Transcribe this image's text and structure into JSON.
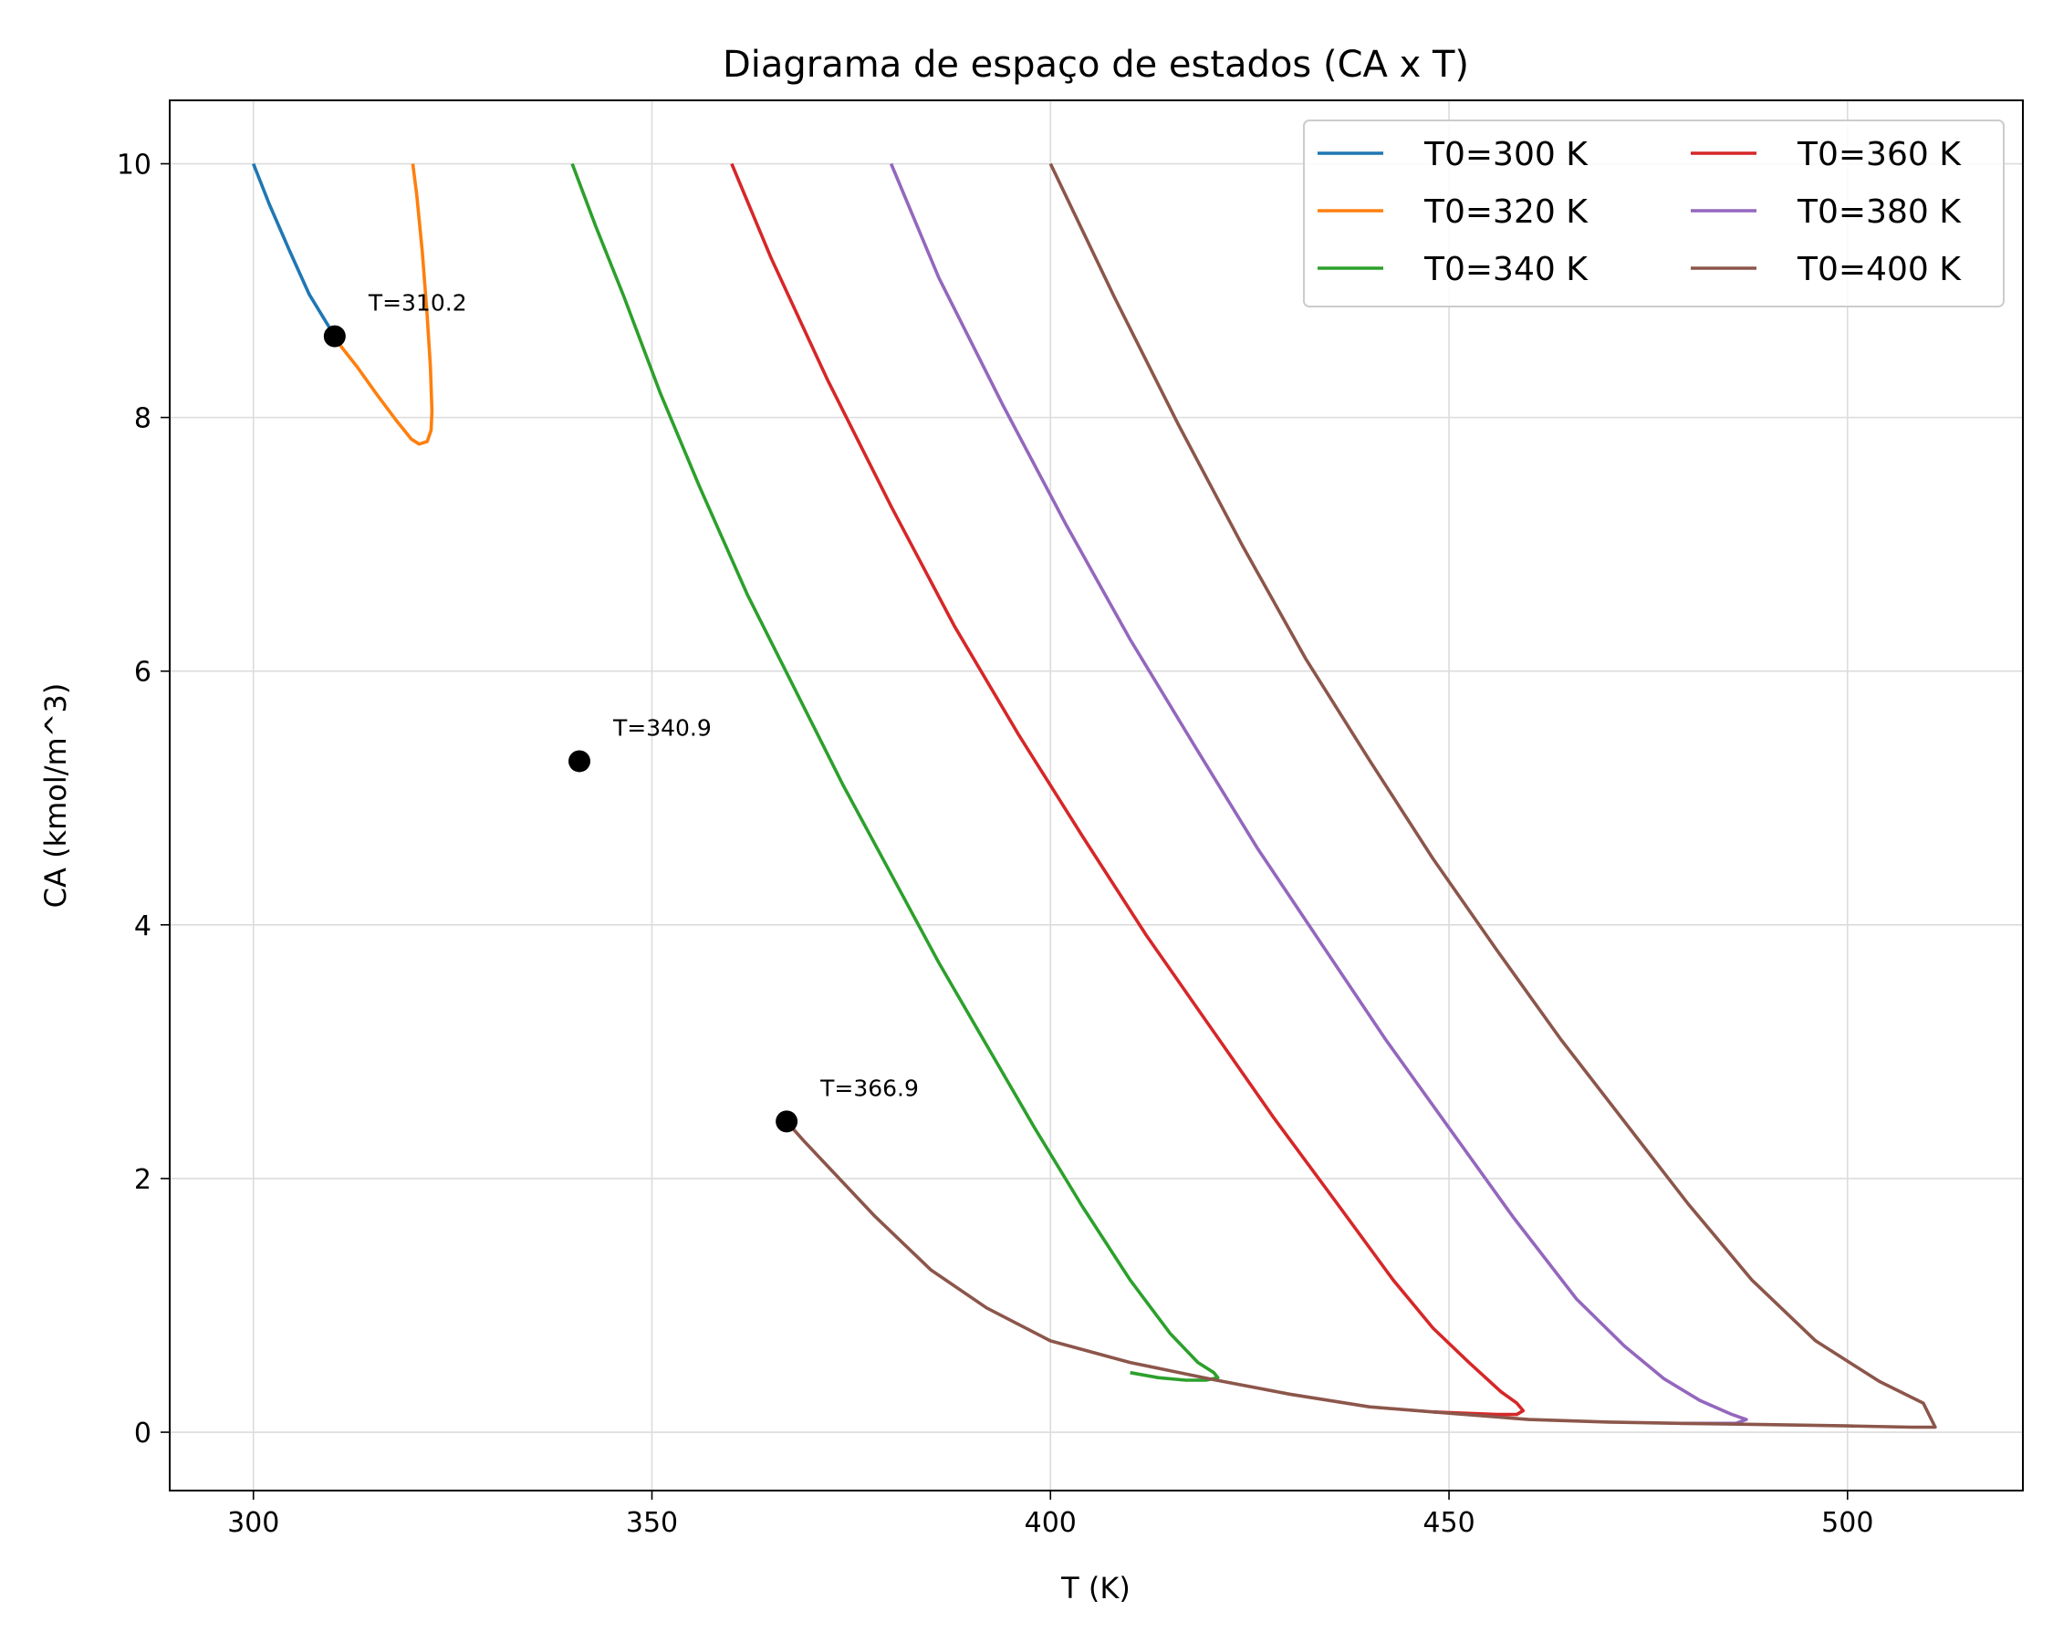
{
  "chart_data": {
    "type": "line",
    "title": "Diagrama de espaço de estados (CA x T)",
    "xlabel": "T (K)",
    "ylabel": "CA (kmol/m^3)",
    "xlim": [
      289.5,
      522.0
    ],
    "ylim": [
      -0.46,
      10.5
    ],
    "xticks": [
      300,
      350,
      400,
      450,
      500
    ],
    "yticks": [
      0,
      2,
      4,
      6,
      8,
      10
    ],
    "grid": true,
    "legend": {
      "placement": "top-right",
      "columns": 2
    },
    "series": [
      {
        "name": "T0=300 K",
        "color": "#1f77b4",
        "points": [
          [
            300.0,
            10.0
          ],
          [
            302.0,
            9.68
          ],
          [
            304.5,
            9.32
          ],
          [
            307.0,
            8.97
          ],
          [
            310.2,
            8.64
          ]
        ]
      },
      {
        "name": "T0=320 K",
        "color": "#ff7f0e",
        "points": [
          [
            320.0,
            10.0
          ],
          [
            320.5,
            9.75
          ],
          [
            321.2,
            9.3
          ],
          [
            321.8,
            8.8
          ],
          [
            322.2,
            8.4
          ],
          [
            322.4,
            8.05
          ],
          [
            322.3,
            7.9
          ],
          [
            321.8,
            7.81
          ],
          [
            320.8,
            7.79
          ],
          [
            319.8,
            7.83
          ],
          [
            318.0,
            7.97
          ],
          [
            315.5,
            8.18
          ],
          [
            313.0,
            8.4
          ],
          [
            311.0,
            8.56
          ],
          [
            310.2,
            8.64
          ]
        ]
      },
      {
        "name": "T0=340 K",
        "color": "#2ca02c",
        "points": [
          [
            340.0,
            10.0
          ],
          [
            343.0,
            9.5
          ],
          [
            346.5,
            8.95
          ],
          [
            351.0,
            8.2
          ],
          [
            356.0,
            7.45
          ],
          [
            362.0,
            6.6
          ],
          [
            368.0,
            5.85
          ],
          [
            374.0,
            5.1
          ],
          [
            380.0,
            4.4
          ],
          [
            386.0,
            3.7
          ],
          [
            392.0,
            3.05
          ],
          [
            398.0,
            2.4
          ],
          [
            404.0,
            1.78
          ],
          [
            410.0,
            1.2
          ],
          [
            415.0,
            0.78
          ],
          [
            418.5,
            0.55
          ],
          [
            420.5,
            0.47
          ],
          [
            421.0,
            0.43
          ],
          [
            419.5,
            0.41
          ],
          [
            417.0,
            0.41
          ],
          [
            413.5,
            0.43
          ],
          [
            410.0,
            0.47
          ]
        ]
      },
      {
        "name": "T0=360 K",
        "color": "#d62728",
        "points": [
          [
            360.0,
            10.0
          ],
          [
            365.0,
            9.25
          ],
          [
            372.0,
            8.3
          ],
          [
            380.0,
            7.3
          ],
          [
            388.0,
            6.35
          ],
          [
            396.0,
            5.5
          ],
          [
            404.0,
            4.7
          ],
          [
            412.0,
            3.92
          ],
          [
            420.0,
            3.2
          ],
          [
            428.0,
            2.48
          ],
          [
            436.0,
            1.8
          ],
          [
            443.0,
            1.2
          ],
          [
            448.0,
            0.82
          ],
          [
            452.5,
            0.55
          ],
          [
            456.5,
            0.32
          ],
          [
            458.5,
            0.23
          ],
          [
            459.3,
            0.17
          ],
          [
            458.5,
            0.14
          ],
          [
            456.0,
            0.14
          ],
          [
            452.0,
            0.15
          ],
          [
            448.0,
            0.16
          ]
        ]
      },
      {
        "name": "T0=380 K",
        "color": "#9467bd",
        "points": [
          [
            380.0,
            10.0
          ],
          [
            386.0,
            9.1
          ],
          [
            394.0,
            8.1
          ],
          [
            402.0,
            7.15
          ],
          [
            410.0,
            6.25
          ],
          [
            418.0,
            5.42
          ],
          [
            426.0,
            4.6
          ],
          [
            434.0,
            3.85
          ],
          [
            442.0,
            3.1
          ],
          [
            450.0,
            2.4
          ],
          [
            458.0,
            1.7
          ],
          [
            466.0,
            1.05
          ],
          [
            472.0,
            0.68
          ],
          [
            477.0,
            0.42
          ],
          [
            481.5,
            0.25
          ],
          [
            485.5,
            0.14
          ],
          [
            487.3,
            0.1
          ],
          [
            486.0,
            0.07
          ],
          [
            483.0,
            0.07
          ],
          [
            479.0,
            0.07
          ]
        ]
      },
      {
        "name": "T0=400 K",
        "color": "#8c564b",
        "points": [
          [
            400.0,
            10.0
          ],
          [
            408.0,
            8.95
          ],
          [
            416.0,
            7.95
          ],
          [
            424.0,
            7.0
          ],
          [
            432.0,
            6.1
          ],
          [
            440.0,
            5.3
          ],
          [
            448.0,
            4.52
          ],
          [
            456.0,
            3.8
          ],
          [
            464.0,
            3.1
          ],
          [
            472.0,
            2.45
          ],
          [
            480.0,
            1.8
          ],
          [
            488.0,
            1.2
          ],
          [
            496.0,
            0.72
          ],
          [
            504.0,
            0.4
          ],
          [
            509.5,
            0.23
          ],
          [
            511.0,
            0.04
          ],
          [
            508.0,
            0.04
          ],
          [
            500.0,
            0.05
          ],
          [
            490.0,
            0.06
          ],
          [
            479.0,
            0.07
          ],
          [
            470.0,
            0.08
          ],
          [
            460.0,
            0.1
          ],
          [
            448.0,
            0.16
          ],
          [
            440.0,
            0.2
          ],
          [
            430.0,
            0.3
          ],
          [
            420.0,
            0.42
          ],
          [
            410.0,
            0.55
          ],
          [
            400.0,
            0.72
          ],
          [
            392.0,
            0.98
          ],
          [
            385.0,
            1.28
          ],
          [
            378.0,
            1.7
          ],
          [
            372.0,
            2.1
          ],
          [
            369.0,
            2.3
          ],
          [
            366.9,
            2.45
          ]
        ]
      }
    ],
    "markers": [
      {
        "x": 310.2,
        "y": 8.64,
        "label": "T=310.2"
      },
      {
        "x": 340.9,
        "y": 5.29,
        "label": "T=340.9"
      },
      {
        "x": 366.9,
        "y": 2.45,
        "label": "T=366.9"
      }
    ]
  }
}
